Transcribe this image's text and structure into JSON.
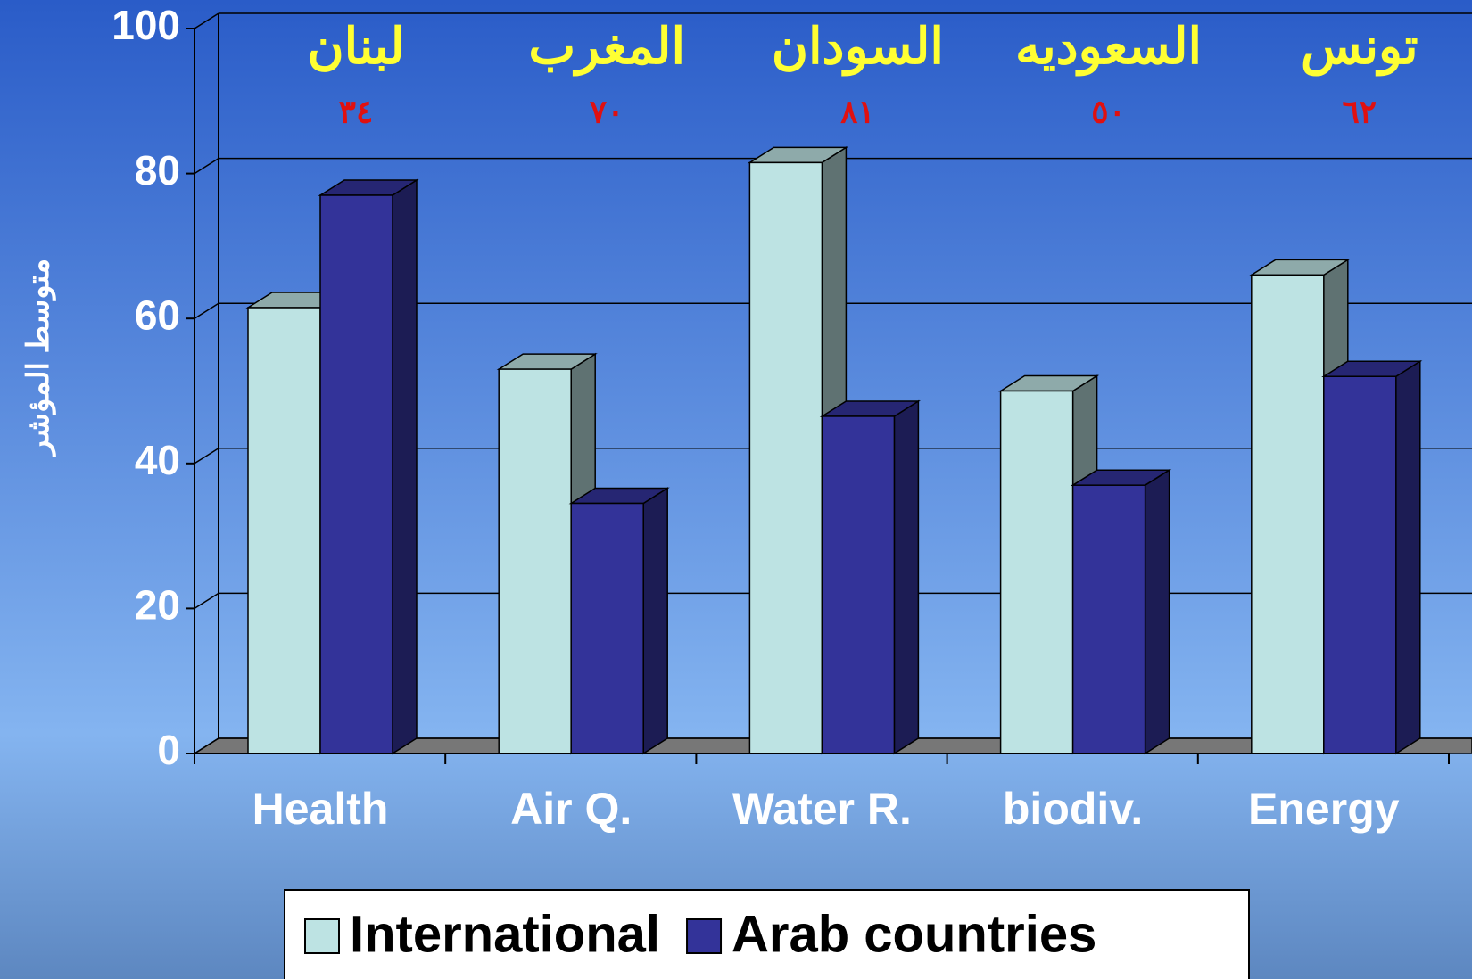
{
  "chart_data": {
    "type": "bar3d",
    "y_label": "متوسط المؤشر",
    "categories": [
      "Health",
      "Air Q.",
      "Water R.",
      "biodiv.",
      "Energy"
    ],
    "series": [
      {
        "name": "International",
        "color": "#bde3e3",
        "values": [
          61.5,
          53,
          81.5,
          50,
          66
        ]
      },
      {
        "name": "Arab countries",
        "color": "#333399",
        "values": [
          77,
          34.5,
          46.5,
          37,
          52
        ]
      }
    ],
    "annotations": [
      {
        "label": "لبنان",
        "value_label": "٣٤"
      },
      {
        "label": "المغرب",
        "value_label": "٧٠"
      },
      {
        "label": "السودان",
        "value_label": "٨١"
      },
      {
        "label": "السعوديه",
        "value_label": "٥٠"
      },
      {
        "label": "تونس",
        "value_label": "٦٢"
      }
    ],
    "ylim": [
      0,
      100
    ],
    "yticks": [
      0,
      20,
      40,
      60,
      80,
      100
    ],
    "grid": true
  }
}
